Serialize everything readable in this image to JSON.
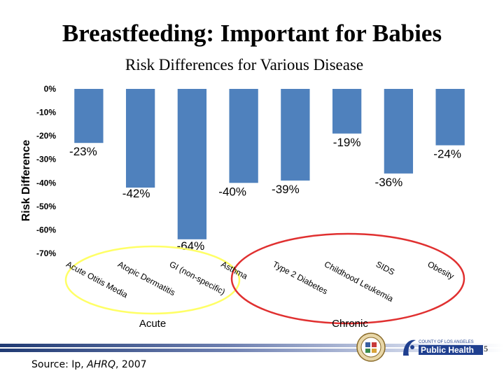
{
  "title": "Breastfeeding: Important for Babies",
  "chart_data": {
    "type": "bar",
    "title": "Risk Differences for Various Disease",
    "xlabel": "",
    "ylabel": "Risk Difference",
    "ylim": [
      -70,
      0
    ],
    "yticks": [
      0,
      -10,
      -20,
      -30,
      -40,
      -50,
      -60,
      -70
    ],
    "ytick_labels": [
      "0%",
      "-10%",
      "-20%",
      "-30%",
      "-40%",
      "-50%",
      "-60%",
      "-70%"
    ],
    "grid": false,
    "categories": [
      "Acute Otitis Media",
      "Atopic Dermatitis",
      "GI (non-specific)",
      "Asthma",
      "Type 2 Diabetes",
      "Childhood Leukemia",
      "SIDS",
      "Obesity"
    ],
    "values": [
      -23,
      -42,
      -64,
      -40,
      -39,
      -19,
      -36,
      -24
    ],
    "data_labels": [
      "-23%",
      "-42%",
      "-64%",
      "-40%",
      "-39%",
      "-19%",
      "-36%",
      "-24%"
    ],
    "bar_color": "#4f81bd",
    "groups": [
      {
        "name": "Acute",
        "outline_color": "#ffff66"
      },
      {
        "name": "Chronic",
        "outline_color": "#e03030"
      }
    ]
  },
  "footer": {
    "source_prefix": "Source: Ip, ",
    "source_italic": "AHRQ",
    "source_suffix": ", 2007",
    "slide_number": "5",
    "logo_text_top": "COUNTY OF LOS ANGELES",
    "logo_text_main": "Public Health",
    "seal_icon": "county-seal-icon"
  }
}
